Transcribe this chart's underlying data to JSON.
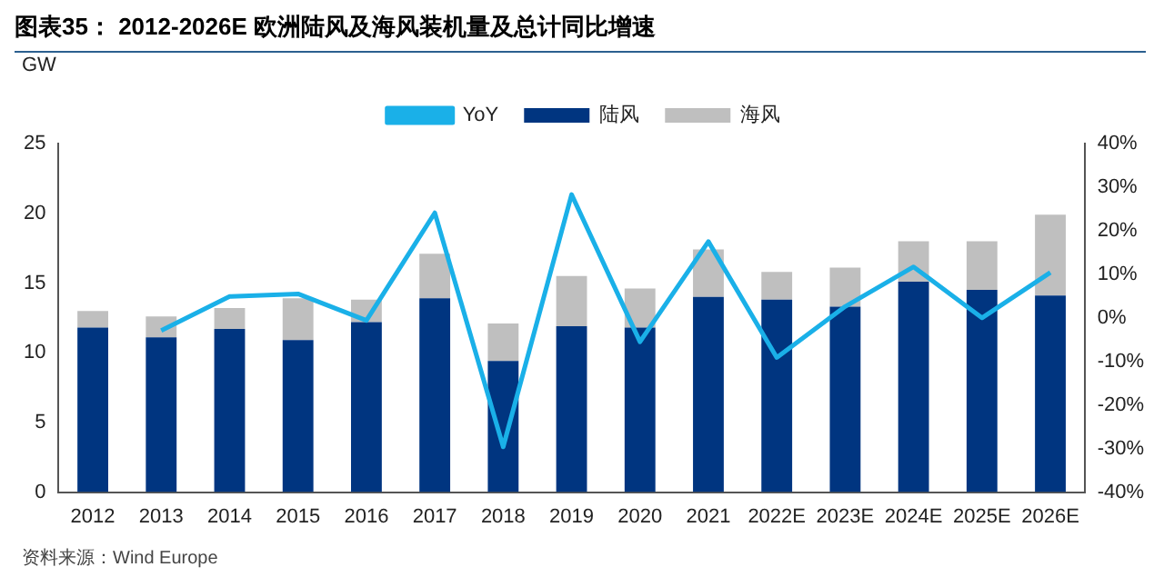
{
  "chart_data": {
    "type": "bar",
    "title": "图表35： 2012-2026E 欧洲陆风及海风装机量及总计同比增速",
    "ylabel": "GW",
    "stacked": true,
    "legend": "top",
    "grid": false,
    "categories": [
      "2012",
      "2013",
      "2014",
      "2015",
      "2016",
      "2017",
      "2018",
      "2019",
      "2020",
      "2021",
      "2022E",
      "2023E",
      "2024E",
      "2025E",
      "2026E"
    ],
    "series": [
      {
        "name": "陆风",
        "color": "#003580",
        "values": [
          11.8,
          11.1,
          11.7,
          10.9,
          12.2,
          13.9,
          9.4,
          11.9,
          11.8,
          14.0,
          13.8,
          13.3,
          15.1,
          14.5,
          14.1
        ]
      },
      {
        "name": "海风",
        "color": "#bfbfbf",
        "values": [
          1.2,
          1.5,
          1.5,
          3.0,
          1.6,
          3.2,
          2.7,
          3.6,
          2.8,
          3.4,
          2.0,
          2.8,
          2.9,
          3.5,
          5.8
        ]
      },
      {
        "name": "YoY",
        "type": "line",
        "axis": "y2",
        "color": "#1ab0e8",
        "marker": "none",
        "values": [
          null,
          -2.9,
          4.9,
          5.5,
          -0.6,
          24.1,
          -29.6,
          28.3,
          -5.5,
          17.5,
          -9.1,
          2.6,
          11.7,
          0.0,
          10.4
        ]
      }
    ],
    "ylim": [
      0,
      25
    ],
    "yticks": [
      0,
      5,
      10,
      15,
      20,
      25
    ],
    "y2lim": [
      -40,
      40
    ],
    "y2ticks": [
      {
        "value": -40,
        "label": "-40%"
      },
      {
        "value": -30,
        "label": "-30%"
      },
      {
        "value": -20,
        "label": "-20%"
      },
      {
        "value": -10,
        "label": "-10%"
      },
      {
        "value": 0,
        "label": "0%"
      },
      {
        "value": 10,
        "label": "10%"
      },
      {
        "value": 20,
        "label": "20%"
      },
      {
        "value": 30,
        "label": "30%"
      },
      {
        "value": 40,
        "label": "40%"
      }
    ],
    "annotations": [
      "资料来源：Wind Europe"
    ]
  }
}
